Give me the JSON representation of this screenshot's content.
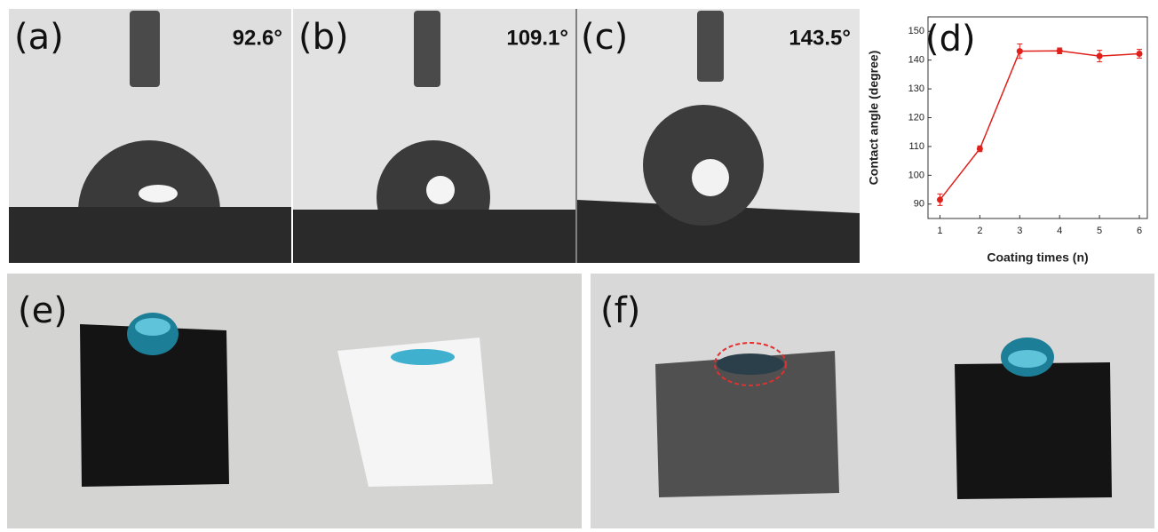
{
  "panels": [
    {
      "label": "(a)",
      "angle": "92.6°"
    },
    {
      "label": "(b)",
      "angle": "109.1°"
    },
    {
      "label": "(c)",
      "angle": "143.5°"
    },
    {
      "label": "(e)"
    },
    {
      "label": "(f)"
    }
  ],
  "chart_data": {
    "type": "line",
    "label": "(d)",
    "xlabel": "Coating times (n)",
    "ylabel": "Contact angle (degree)",
    "x": [
      1,
      2,
      3,
      4,
      5,
      6
    ],
    "series": [
      {
        "color": "#e0201b",
        "values": [
          91.5,
          109.2,
          143.1,
          143.2,
          141.4,
          142.2
        ],
        "errors": [
          2,
          1,
          2.5,
          1,
          2,
          1.5
        ]
      }
    ],
    "xlim": [
      0.7,
      6.2
    ],
    "ylim": [
      85,
      155
    ],
    "xticks": [
      1,
      2,
      3,
      4,
      5,
      6
    ],
    "yticks": [
      90,
      100,
      110,
      120,
      130,
      140,
      150
    ]
  }
}
